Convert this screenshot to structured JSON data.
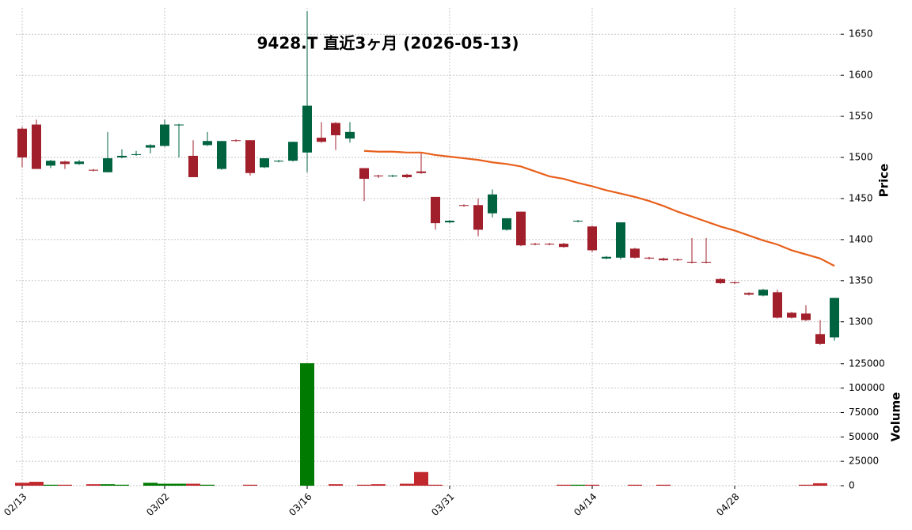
{
  "chart_data": {
    "type": "candlestick",
    "title": "9428.T  直近3ヶ月  (2026-05-13)",
    "categories": [
      "02/13",
      null,
      null,
      null,
      null,
      null,
      null,
      null,
      null,
      null,
      "03/02",
      null,
      null,
      null,
      null,
      null,
      null,
      null,
      null,
      null,
      "03/16",
      null,
      null,
      null,
      null,
      null,
      null,
      null,
      null,
      null,
      "03/31",
      null,
      null,
      null,
      null,
      null,
      null,
      null,
      null,
      null,
      "04/14",
      null,
      null,
      null,
      null,
      null,
      null,
      null,
      null,
      null,
      "04/28",
      null,
      null,
      null,
      null,
      null,
      null,
      null
    ],
    "open": [
      1535,
      1540,
      1490,
      1495,
      1492,
      1485,
      1482,
      1500,
      1503,
      1512,
      1514,
      1539,
      1502,
      1515,
      1486,
      1521,
      1521,
      1488,
      1495,
      1496,
      1506,
      1524,
      1542,
      1523,
      1487,
      1478,
      1477,
      1479,
      1483,
      1452,
      1421,
      1442,
      1442,
      1432,
      1412,
      1434,
      1395,
      1395,
      1395,
      1422,
      1416,
      1377,
      1378,
      1389,
      1378,
      1377,
      1376,
      1373,
      1373,
      1352,
      1348,
      1335,
      1332,
      1336,
      1311,
      1310,
      1285,
      1281
    ],
    "high": [
      1537,
      1546,
      1497,
      1496,
      1497,
      1486,
      1531,
      1510,
      1508,
      1516,
      1546,
      1541,
      1521,
      1531,
      1520,
      1522,
      1521,
      1499,
      1497,
      1519,
      1678,
      1543,
      1543,
      1543,
      1487,
      1479,
      1479,
      1480,
      1505,
      1452,
      1424,
      1443,
      1450,
      1461,
      1426,
      1434,
      1396,
      1396,
      1396,
      1424,
      1417,
      1380,
      1421,
      1390,
      1379,
      1378,
      1377,
      1402,
      1402,
      1353,
      1349,
      1336,
      1340,
      1339,
      1312,
      1320,
      1302,
      1329
    ],
    "low": [
      1488,
      1486,
      1487,
      1486,
      1491,
      1483,
      1482,
      1499,
      1502,
      1505,
      1513,
      1500,
      1476,
      1514,
      1485,
      1519,
      1478,
      1487,
      1494,
      1495,
      1482,
      1518,
      1509,
      1518,
      1447,
      1475,
      1476,
      1475,
      1480,
      1412,
      1420,
      1440,
      1404,
      1427,
      1411,
      1392,
      1393,
      1393,
      1390,
      1421,
      1385,
      1376,
      1376,
      1377,
      1376,
      1374,
      1374,
      1371,
      1371,
      1346,
      1346,
      1332,
      1331,
      1304,
      1304,
      1301,
      1272,
      1277
    ],
    "close": [
      1500,
      1486,
      1496,
      1492,
      1495,
      1484,
      1499,
      1502,
      1504,
      1515,
      1540,
      1540,
      1476,
      1520,
      1520,
      1520,
      1481,
      1499,
      1496,
      1519,
      1563,
      1519,
      1527,
      1531,
      1474,
      1477,
      1478,
      1476,
      1481,
      1420,
      1423,
      1441,
      1412,
      1455,
      1426,
      1393,
      1394,
      1394,
      1391,
      1423,
      1387,
      1379,
      1421,
      1378,
      1377,
      1375,
      1375,
      1372,
      1372,
      1347,
      1347,
      1333,
      1339,
      1305,
      1305,
      1302,
      1273,
      1329
    ],
    "up_color": "#006340",
    "down_color": "#a11f2a",
    "ylim": [
      1268,
      1682
    ],
    "yticks": [
      1300,
      1350,
      1400,
      1450,
      1500,
      1550,
      1600,
      1650
    ],
    "ylabel": "Price",
    "grid": true,
    "moving_average": {
      "color": "#e8601c",
      "values": [
        null,
        null,
        null,
        null,
        null,
        null,
        null,
        null,
        null,
        null,
        null,
        null,
        null,
        null,
        null,
        null,
        null,
        null,
        null,
        null,
        null,
        null,
        null,
        null,
        1508,
        1507,
        1507,
        1506,
        1506,
        1503,
        1501,
        1499,
        1497,
        1494,
        1492,
        1489,
        1483,
        1477,
        1474,
        1469,
        1465,
        1460,
        1456,
        1452,
        1447,
        1441,
        1434,
        1428,
        1422,
        1416,
        1411,
        1405,
        1399,
        1394,
        1387,
        1382,
        1377,
        1368
      ]
    },
    "volume": {
      "values": [
        3000,
        4000,
        1000,
        1000,
        0,
        1500,
        1500,
        1000,
        0,
        3000,
        2000,
        2000,
        2000,
        1000,
        0,
        0,
        1000,
        0,
        0,
        0,
        125500,
        0,
        1500,
        0,
        1000,
        1500,
        0,
        2000,
        14000,
        1000,
        0,
        0,
        0,
        0,
        0,
        0,
        0,
        0,
        1000,
        1000,
        1000,
        0,
        0,
        1000,
        0,
        1000,
        0,
        0,
        0,
        0,
        0,
        0,
        0,
        0,
        0,
        1000,
        2500,
        0
      ],
      "up_color": "#007a00",
      "down_color": "#c0282d",
      "ylim": [
        0,
        137000
      ],
      "yticks": [
        0,
        25000,
        50000,
        75000,
        100000,
        125000
      ],
      "ylabel": "Volume"
    }
  }
}
